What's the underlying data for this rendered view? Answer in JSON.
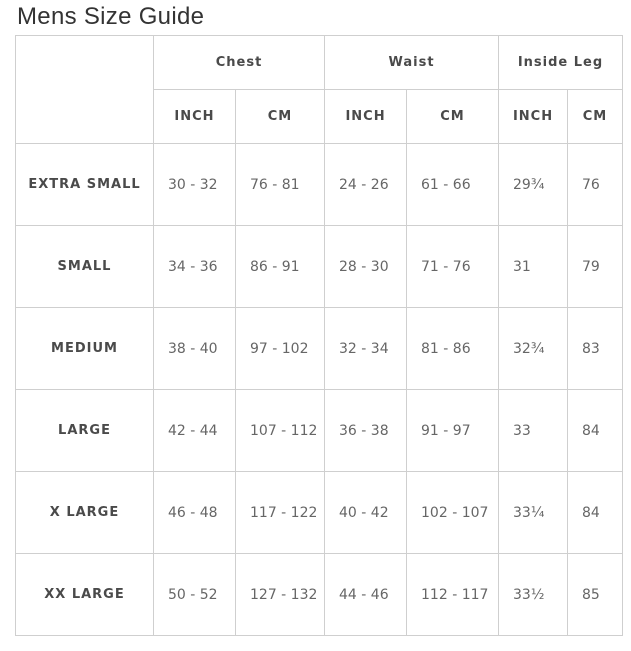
{
  "title": "Mens Size Guide",
  "groups": [
    "Chest",
    "Waist",
    "Inside Leg"
  ],
  "units": [
    "INCH",
    "CM",
    "INCH",
    "CM",
    "INCH",
    "CM"
  ],
  "rows": [
    {
      "size": "EXTRA SMALL",
      "values": [
        "30 - 32",
        "76 - 81",
        "24 - 26",
        "61 - 66",
        "29¾",
        "76"
      ]
    },
    {
      "size": "SMALL",
      "values": [
        "34 - 36",
        "86 - 91",
        "28 - 30",
        "71 - 76",
        "31",
        "79"
      ]
    },
    {
      "size": "MEDIUM",
      "values": [
        "38 - 40",
        "97 - 102",
        "32 - 34",
        "81 - 86",
        "32¾",
        "83"
      ]
    },
    {
      "size": "LARGE",
      "values": [
        "42 - 44",
        "107 - 112",
        "36 - 38",
        "91 - 97",
        "33",
        "84"
      ]
    },
    {
      "size": "X LARGE",
      "values": [
        "46 - 48",
        "117 - 122",
        "40 - 42",
        "102 - 107",
        "33¼",
        "84"
      ]
    },
    {
      "size": "XX LARGE",
      "values": [
        "50 - 52",
        "127 - 132",
        "44 - 46",
        "112 - 117",
        "33½",
        "85"
      ]
    }
  ]
}
